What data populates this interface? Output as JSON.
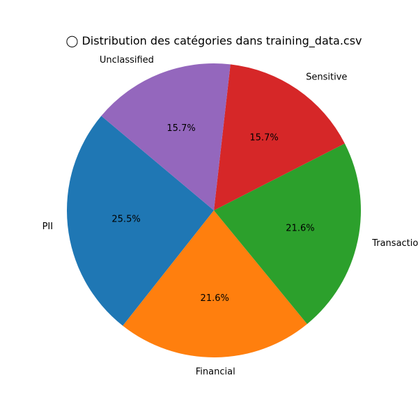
{
  "chart_data": {
    "type": "pie",
    "title": "◯ Distribution des catégories dans training_data.csv",
    "start_angle_deg": 140,
    "direction": "counterclockwise",
    "slices": [
      {
        "label": "PII",
        "value": 25.5,
        "pct_label": "25.5%",
        "color": "#1f77b4"
      },
      {
        "label": "Financial",
        "value": 21.6,
        "pct_label": "21.6%",
        "color": "#ff7f0e"
      },
      {
        "label": "Transaction",
        "value": 21.6,
        "pct_label": "21.6%",
        "color": "#2ca02c"
      },
      {
        "label": "Sensitive",
        "value": 15.7,
        "pct_label": "15.7%",
        "color": "#d62728"
      },
      {
        "label": "Unclassified",
        "value": 15.7,
        "pct_label": "15.7%",
        "color": "#9467bd"
      }
    ]
  }
}
